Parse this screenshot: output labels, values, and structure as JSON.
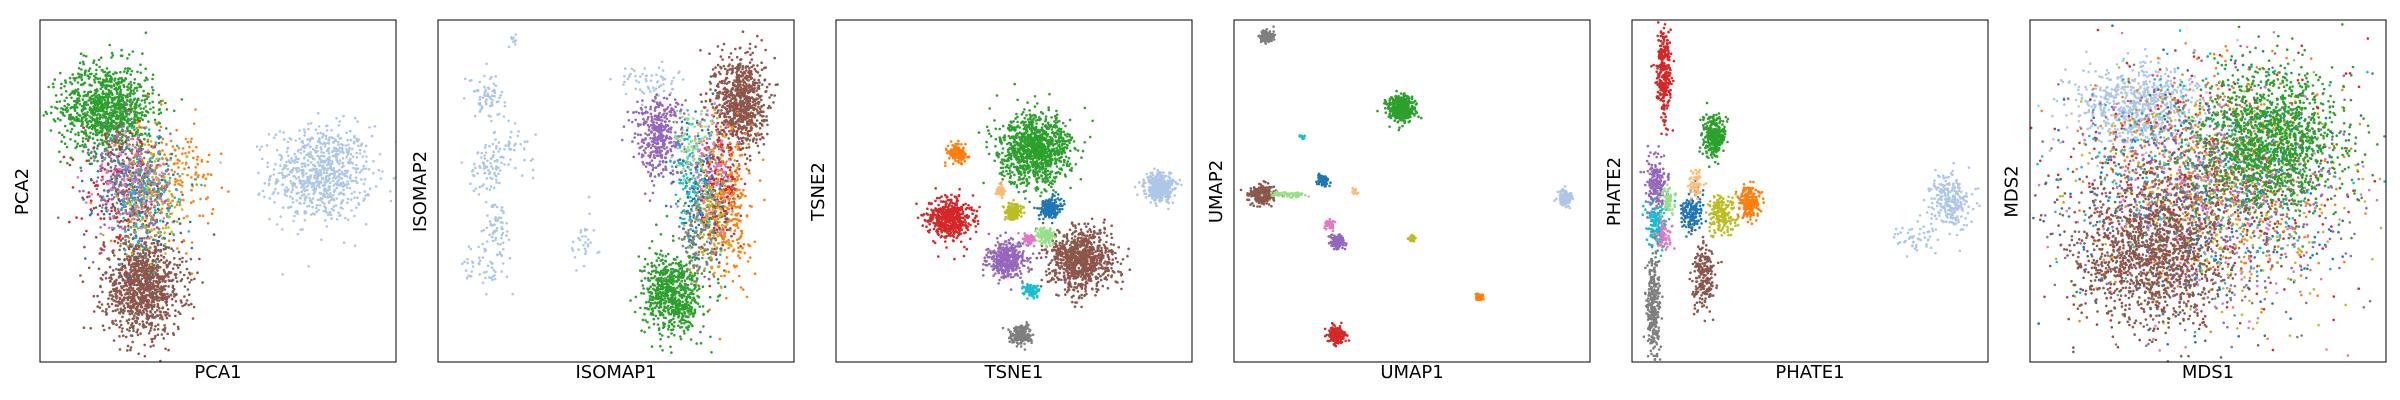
{
  "colors": [
    "#aec7e8",
    "#2ca02c",
    "#8c564b",
    "#d62728",
    "#ff7f0e",
    "#1f77b4",
    "#9467bd",
    "#bcbd22",
    "#17becf",
    "#7f7f7f",
    "#e377c2",
    "#98df8a",
    "#ffbb78"
  ],
  "chart_data": [
    {
      "type": "scatter",
      "xlabel": "PCA1",
      "ylabel": "PCA2",
      "xlim": [
        0,
        100
      ],
      "ylim": [
        0,
        100
      ],
      "ticks": "none",
      "grid": false,
      "legend": "none",
      "clusters": [
        {
          "color": "#aec7e8",
          "cx": 79,
          "cy": 55,
          "sx": 7,
          "sy": 7,
          "n": 750
        },
        {
          "color": "#2ca02c",
          "cx": 19,
          "cy": 74,
          "sx": 6.5,
          "sy": 6.5,
          "n": 1100
        },
        {
          "color": "#8c564b",
          "cx": 29,
          "cy": 22,
          "sx": 5.5,
          "sy": 7,
          "n": 1100
        },
        {
          "color": "#d62728",
          "cx": 23,
          "cy": 50,
          "sx": 5.5,
          "sy": 8,
          "n": 200
        },
        {
          "color": "#ff7f0e",
          "cx": 36,
          "cy": 54,
          "sx": 6.5,
          "sy": 8,
          "n": 200
        },
        {
          "color": "#1f77b4",
          "cx": 27,
          "cy": 50,
          "sx": 6,
          "sy": 8,
          "n": 180
        },
        {
          "color": "#9467bd",
          "cx": 25,
          "cy": 54,
          "sx": 5.5,
          "sy": 8,
          "n": 180
        },
        {
          "color": "#bcbd22",
          "cx": 31,
          "cy": 47,
          "sx": 5,
          "sy": 8,
          "n": 150
        },
        {
          "color": "#17becf",
          "cx": 29,
          "cy": 49,
          "sx": 5,
          "sy": 8,
          "n": 120
        },
        {
          "color": "#e377c2",
          "cx": 26,
          "cy": 52,
          "sx": 5,
          "sy": 8,
          "n": 120
        },
        {
          "color": "#7f7f7f",
          "cx": 28,
          "cy": 45,
          "sx": 5,
          "sy": 8,
          "n": 100
        }
      ]
    },
    {
      "type": "scatter",
      "xlabel": "ISOMAP1",
      "ylabel": "ISOMAP2",
      "xlim": [
        0,
        100
      ],
      "ylim": [
        0,
        100
      ],
      "ticks": "none",
      "grid": false,
      "legend": "none",
      "clusters": [
        {
          "color": "#aec7e8",
          "cx": 14,
          "cy": 78,
          "sx": 2.5,
          "sy": 3,
          "n": 70
        },
        {
          "color": "#aec7e8",
          "cx": 14,
          "cy": 57,
          "sx": 2.5,
          "sy": 4,
          "n": 80
        },
        {
          "color": "#aec7e8",
          "cx": 17,
          "cy": 40,
          "sx": 2,
          "sy": 4,
          "n": 60
        },
        {
          "color": "#aec7e8",
          "cx": 21,
          "cy": 62,
          "sx": 3,
          "sy": 3,
          "n": 40
        },
        {
          "color": "#aec7e8",
          "cx": 13,
          "cy": 28,
          "sx": 4,
          "sy": 3,
          "n": 50
        },
        {
          "color": "#aec7e8",
          "cx": 59,
          "cy": 82,
          "sx": 4,
          "sy": 2.5,
          "n": 60
        },
        {
          "color": "#aec7e8",
          "cx": 21,
          "cy": 94,
          "sx": 1,
          "sy": 1,
          "n": 12
        },
        {
          "color": "#aec7e8",
          "cx": 41,
          "cy": 35,
          "sx": 2,
          "sy": 4,
          "n": 30
        },
        {
          "color": "#8c564b",
          "cx": 85,
          "cy": 76,
          "sx": 3.5,
          "sy": 7,
          "n": 800
        },
        {
          "color": "#9467bd",
          "cx": 62,
          "cy": 66,
          "sx": 3.5,
          "sy": 6,
          "n": 400
        },
        {
          "color": "#2ca02c",
          "cx": 66,
          "cy": 20,
          "sx": 4,
          "sy": 6,
          "n": 700
        },
        {
          "color": "#d62728",
          "cx": 79,
          "cy": 50,
          "sx": 3,
          "sy": 9,
          "n": 260
        },
        {
          "color": "#ff7f0e",
          "cx": 82,
          "cy": 46,
          "sx": 3,
          "sy": 12,
          "n": 260
        },
        {
          "color": "#1f77b4",
          "cx": 74,
          "cy": 50,
          "sx": 3.5,
          "sy": 9,
          "n": 180
        },
        {
          "color": "#bcbd22",
          "cx": 76,
          "cy": 44,
          "sx": 3,
          "sy": 10,
          "n": 150
        },
        {
          "color": "#17becf",
          "cx": 72,
          "cy": 54,
          "sx": 3,
          "sy": 9,
          "n": 110
        },
        {
          "color": "#7f7f7f",
          "cx": 73,
          "cy": 34,
          "sx": 3,
          "sy": 6,
          "n": 100
        },
        {
          "color": "#e377c2",
          "cx": 77,
          "cy": 58,
          "sx": 3,
          "sy": 8,
          "n": 100
        },
        {
          "color": "#98df8a",
          "cx": 71,
          "cy": 62,
          "sx": 3,
          "sy": 6,
          "n": 80
        }
      ]
    },
    {
      "type": "scatter",
      "xlabel": "TSNE1",
      "ylabel": "TSNE2",
      "xlim": [
        0,
        100
      ],
      "ylim": [
        0,
        100
      ],
      "ticks": "none",
      "grid": false,
      "legend": "none",
      "clusters": [
        {
          "color": "#2ca02c",
          "cx": 56,
          "cy": 62,
          "sx": 5,
          "sy": 5,
          "n": 1100
        },
        {
          "color": "#8c564b",
          "cx": 69,
          "cy": 30,
          "sx": 4.5,
          "sy": 4.5,
          "n": 900
        },
        {
          "color": "#d62728",
          "cx": 32,
          "cy": 42,
          "sx": 3,
          "sy": 3,
          "n": 500
        },
        {
          "color": "#9467bd",
          "cx": 48,
          "cy": 30,
          "sx": 2.6,
          "sy": 2.6,
          "n": 400
        },
        {
          "color": "#aec7e8",
          "cx": 91,
          "cy": 51,
          "sx": 2,
          "sy": 2,
          "n": 400
        },
        {
          "color": "#ff7f0e",
          "cx": 34,
          "cy": 61,
          "sx": 1.3,
          "sy": 1.3,
          "n": 150
        },
        {
          "color": "#1f77b4",
          "cx": 60,
          "cy": 45,
          "sx": 1.5,
          "sy": 1.5,
          "n": 200
        },
        {
          "color": "#bcbd22",
          "cx": 50,
          "cy": 44,
          "sx": 1.2,
          "sy": 1.2,
          "n": 150
        },
        {
          "color": "#98df8a",
          "cx": 59,
          "cy": 37,
          "sx": 1.2,
          "sy": 1.2,
          "n": 120
        },
        {
          "color": "#17becf",
          "cx": 55,
          "cy": 21,
          "sx": 1,
          "sy": 1,
          "n": 90
        },
        {
          "color": "#7f7f7f",
          "cx": 52,
          "cy": 8,
          "sx": 1.4,
          "sy": 1.4,
          "n": 200
        },
        {
          "color": "#ffbb78",
          "cx": 46,
          "cy": 50,
          "sx": 0.8,
          "sy": 0.8,
          "n": 60
        },
        {
          "color": "#e377c2",
          "cx": 54,
          "cy": 36,
          "sx": 0.8,
          "sy": 0.8,
          "n": 50
        }
      ]
    },
    {
      "type": "scatter",
      "xlabel": "UMAP1",
      "ylabel": "UMAP2",
      "xlim": [
        0,
        100
      ],
      "ylim": [
        0,
        100
      ],
      "ticks": "none",
      "grid": false,
      "legend": "none",
      "clusters": [
        {
          "color": "#7f7f7f",
          "cx": 9,
          "cy": 95,
          "sx": 1,
          "sy": 1,
          "n": 120
        },
        {
          "color": "#2ca02c",
          "cx": 47,
          "cy": 74,
          "sx": 1.8,
          "sy": 1.8,
          "n": 500
        },
        {
          "color": "#8c564b",
          "cx": 8,
          "cy": 49,
          "sx": 1.7,
          "sy": 1.3,
          "n": 300
        },
        {
          "color": "#98df8a",
          "cx": 15,
          "cy": 49,
          "sx": 2.5,
          "sy": 0.4,
          "n": 70
        },
        {
          "color": "#aec7e8",
          "cx": 93,
          "cy": 48,
          "sx": 1,
          "sy": 1,
          "n": 200
        },
        {
          "color": "#1f77b4",
          "cx": 25,
          "cy": 53,
          "sx": 0.8,
          "sy": 0.8,
          "n": 80
        },
        {
          "color": "#17becf",
          "cx": 19,
          "cy": 66,
          "sx": 0.4,
          "sy": 0.4,
          "n": 12
        },
        {
          "color": "#e377c2",
          "cx": 27,
          "cy": 40,
          "sx": 0.8,
          "sy": 0.8,
          "n": 40
        },
        {
          "color": "#9467bd",
          "cx": 29,
          "cy": 35,
          "sx": 1,
          "sy": 1,
          "n": 120
        },
        {
          "color": "#ffbb78",
          "cx": 34,
          "cy": 50,
          "sx": 0.4,
          "sy": 0.4,
          "n": 12
        },
        {
          "color": "#bcbd22",
          "cx": 50,
          "cy": 36,
          "sx": 0.5,
          "sy": 0.5,
          "n": 30
        },
        {
          "color": "#ff7f0e",
          "cx": 69,
          "cy": 19,
          "sx": 0.6,
          "sy": 0.6,
          "n": 40
        },
        {
          "color": "#d62728",
          "cx": 29,
          "cy": 8,
          "sx": 1.2,
          "sy": 1.2,
          "n": 200
        }
      ]
    },
    {
      "type": "scatter",
      "xlabel": "PHATE1",
      "ylabel": "PHATE2",
      "xlim": [
        0,
        100
      ],
      "ylim": [
        0,
        100
      ],
      "ticks": "none",
      "grid": false,
      "legend": "none",
      "clusters": [
        {
          "color": "#d62728",
          "cx": 9,
          "cy": 84,
          "sx": 1,
          "sy": 6,
          "n": 300
        },
        {
          "color": "#2ca02c",
          "cx": 23,
          "cy": 66,
          "sx": 1.5,
          "sy": 3,
          "n": 300
        },
        {
          "color": "#aec7e8",
          "cx": 89,
          "cy": 47,
          "sx": 3,
          "sy": 4,
          "n": 250
        },
        {
          "color": "#aec7e8",
          "cx": 80,
          "cy": 36,
          "sx": 3,
          "sy": 2,
          "n": 50
        },
        {
          "color": "#ff7f0e",
          "cx": 33,
          "cy": 47,
          "sx": 1.5,
          "sy": 2.5,
          "n": 200
        },
        {
          "color": "#bcbd22",
          "cx": 25,
          "cy": 43,
          "sx": 2,
          "sy": 3,
          "n": 200
        },
        {
          "color": "#1f77b4",
          "cx": 17,
          "cy": 44,
          "sx": 1.5,
          "sy": 3,
          "n": 150
        },
        {
          "color": "#9467bd",
          "cx": 7,
          "cy": 52,
          "sx": 1.5,
          "sy": 4,
          "n": 200
        },
        {
          "color": "#17becf",
          "cx": 7,
          "cy": 40,
          "sx": 1.5,
          "sy": 3,
          "n": 150
        },
        {
          "color": "#ffbb78",
          "cx": 18,
          "cy": 52,
          "sx": 1,
          "sy": 2,
          "n": 60
        },
        {
          "color": "#98df8a",
          "cx": 10,
          "cy": 47,
          "sx": 1,
          "sy": 2,
          "n": 60
        },
        {
          "color": "#8c564b",
          "cx": 20,
          "cy": 25,
          "sx": 1.5,
          "sy": 5,
          "n": 200
        },
        {
          "color": "#7f7f7f",
          "cx": 6,
          "cy": 17,
          "sx": 1,
          "sy": 8,
          "n": 300
        },
        {
          "color": "#e377c2",
          "cx": 9,
          "cy": 37,
          "sx": 1,
          "sy": 2,
          "n": 60
        }
      ]
    },
    {
      "type": "scatter",
      "xlabel": "MDS1",
      "ylabel": "MDS2",
      "xlim": [
        0,
        100
      ],
      "ylim": [
        0,
        100
      ],
      "ticks": "none",
      "grid": false,
      "legend": "none",
      "clusters": [
        {
          "color": "#aec7e8",
          "cx": 30,
          "cy": 75,
          "sx": 9,
          "sy": 6,
          "n": 700
        },
        {
          "color": "#d62728",
          "cx": 50,
          "cy": 52,
          "sx": 18,
          "sy": 17,
          "n": 450
        },
        {
          "color": "#ff7f0e",
          "cx": 52,
          "cy": 55,
          "sx": 18,
          "sy": 17,
          "n": 450
        },
        {
          "color": "#1f77b4",
          "cx": 48,
          "cy": 48,
          "sx": 18,
          "sy": 17,
          "n": 400
        },
        {
          "color": "#9467bd",
          "cx": 50,
          "cy": 50,
          "sx": 18,
          "sy": 17,
          "n": 400
        },
        {
          "color": "#bcbd22",
          "cx": 52,
          "cy": 46,
          "sx": 18,
          "sy": 17,
          "n": 350
        },
        {
          "color": "#17becf",
          "cx": 47,
          "cy": 53,
          "sx": 18,
          "sy": 17,
          "n": 300
        },
        {
          "color": "#e377c2",
          "cx": 53,
          "cy": 50,
          "sx": 18,
          "sy": 17,
          "n": 300
        },
        {
          "color": "#7f7f7f",
          "cx": 49,
          "cy": 46,
          "sx": 18,
          "sy": 17,
          "n": 250
        },
        {
          "color": "#2ca02c",
          "cx": 68,
          "cy": 65,
          "sx": 10,
          "sy": 10,
          "n": 1400
        },
        {
          "color": "#8c564b",
          "cx": 34,
          "cy": 32,
          "sx": 11,
          "sy": 11,
          "n": 1400
        }
      ]
    }
  ]
}
